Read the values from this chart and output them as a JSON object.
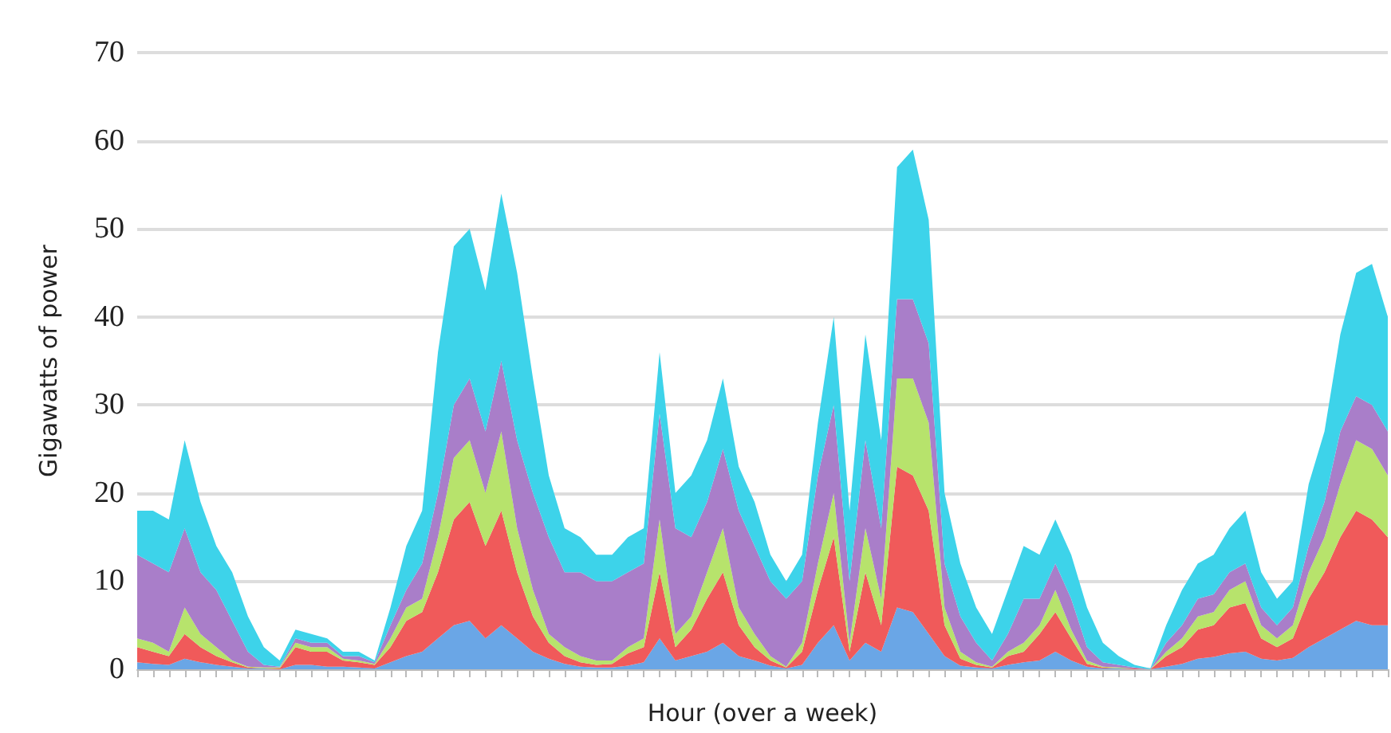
{
  "chart_data": {
    "type": "area",
    "stacked": true,
    "xlabel": "Hour (over a week)",
    "ylabel": "Gigawatts of power",
    "categories": [
      null,
      null,
      null,
      null,
      null,
      null,
      null,
      null,
      null,
      null,
      null,
      null,
      null,
      null,
      null,
      null,
      null,
      null,
      null,
      null,
      null,
      null,
      null,
      null,
      null,
      null,
      null,
      null,
      null,
      null,
      null,
      null,
      null,
      null,
      null,
      null,
      null,
      null,
      null,
      null,
      null,
      null,
      null,
      null,
      null,
      null,
      null,
      null,
      null,
      null,
      null,
      null,
      null,
      null,
      null,
      null,
      null,
      null,
      null,
      null,
      null,
      null,
      null,
      null,
      null,
      null,
      null,
      null,
      null,
      null,
      null,
      null,
      null,
      null,
      null,
      null,
      null,
      null,
      null,
      null
    ],
    "series": [
      {
        "color": "#6aa6e6",
        "values": [
          0.8,
          0.6,
          0.5,
          1.2,
          0.8,
          0.5,
          0.3,
          0.1,
          0.1,
          0,
          0.5,
          0.5,
          0.3,
          0.3,
          0.2,
          0.1,
          0.8,
          1.5,
          2,
          3.5,
          5,
          5.5,
          3.5,
          5,
          3.5,
          2,
          1.2,
          0.6,
          0.3,
          0.2,
          0.2,
          0.4,
          0.8,
          3.5,
          1,
          1.5,
          2,
          3,
          1.5,
          1,
          0.4,
          0.1,
          0.5,
          3,
          5,
          1,
          3,
          2,
          7,
          6.5,
          4,
          1.5,
          0.4,
          0.2,
          0.1,
          0.5,
          0.8,
          1,
          2,
          1,
          0.3,
          0.1,
          0.1,
          0,
          0,
          0.3,
          0.6,
          1.2,
          1.4,
          1.8,
          2,
          1.2,
          1,
          1.3,
          2.5,
          3.5,
          4.5,
          5.5,
          5,
          5
        ]
      },
      {
        "color": "#f05a5a",
        "values": [
          1.7,
          1.4,
          1,
          2.8,
          1.7,
          1,
          0.5,
          0.1,
          0,
          0.1,
          2,
          1.5,
          1.7,
          0.7,
          0.6,
          0.4,
          1.7,
          4,
          4.5,
          7.5,
          12,
          13.5,
          10.5,
          13,
          7.5,
          4,
          1.8,
          0.9,
          0.5,
          0.3,
          0.4,
          1.4,
          1.7,
          7.5,
          1.5,
          3,
          6,
          8,
          3.5,
          1.5,
          0.6,
          0.1,
          1.5,
          6,
          10,
          1,
          8,
          3,
          16,
          15.5,
          14,
          3.5,
          0.8,
          0.3,
          0.1,
          1,
          1.2,
          3,
          4.5,
          2.5,
          0.3,
          0.1,
          0,
          0.1,
          0,
          1.2,
          1.9,
          3.3,
          3.6,
          5.2,
          5.5,
          2.3,
          1.5,
          2.2,
          5.5,
          7.5,
          10.5,
          12.5,
          12,
          10
        ]
      },
      {
        "color": "#b7e36c",
        "values": [
          1,
          1,
          0.5,
          3,
          1.5,
          1,
          0.2,
          0.1,
          0.1,
          0.1,
          0.5,
          0.5,
          0.5,
          0.2,
          0.2,
          0.1,
          1,
          1.5,
          1.5,
          4,
          7,
          7,
          6,
          9,
          5,
          3,
          1,
          1,
          0.7,
          0.5,
          0.4,
          0.7,
          1,
          6,
          1.5,
          1.5,
          3,
          5,
          2,
          1.5,
          0.5,
          0.1,
          1,
          3,
          5,
          1,
          5,
          3,
          10,
          11,
          10,
          2,
          0.8,
          0.3,
          0.1,
          0.5,
          1,
          1,
          2.5,
          1,
          0.4,
          0.1,
          0.1,
          0,
          0,
          0.5,
          1,
          1.5,
          1.5,
          2,
          2.5,
          1.5,
          1,
          1.5,
          3,
          4,
          6,
          8,
          8,
          7
        ]
      },
      {
        "color": "#a97ec9",
        "values": [
          9.5,
          9,
          9,
          9,
          7,
          6.5,
          4.5,
          1.7,
          0.3,
          0.1,
          0.5,
          0.5,
          0.5,
          0.3,
          0.5,
          0.2,
          1.5,
          2,
          4,
          5,
          6,
          7,
          7,
          8,
          10,
          11,
          11,
          8.5,
          9.5,
          9,
          9,
          8.5,
          8.5,
          12,
          12,
          9,
          8,
          9,
          11,
          10,
          8.5,
          7.7,
          7,
          10,
          10,
          7,
          10,
          8,
          9,
          9,
          9,
          5,
          4,
          2.2,
          0.7,
          2,
          5,
          3,
          3,
          3.5,
          1.5,
          0.5,
          0.3,
          0.1,
          0,
          1,
          1.5,
          2,
          2,
          2,
          2,
          2,
          1.5,
          2,
          3,
          4,
          6,
          5,
          5,
          5
        ]
      },
      {
        "color": "#3dd3ea",
        "values": [
          5,
          6,
          6,
          10,
          8,
          5,
          5.5,
          4,
          2,
          0.7,
          1,
          1,
          0.5,
          0.5,
          0.5,
          0.2,
          2,
          5,
          6,
          16,
          18,
          17,
          16,
          19,
          19,
          13,
          7,
          5,
          4,
          3,
          3,
          4,
          4,
          7,
          4,
          7,
          7,
          8,
          5,
          5,
          3,
          2,
          3,
          6,
          10,
          8,
          12,
          10,
          15,
          17,
          14,
          8,
          6,
          4,
          3,
          5,
          6,
          5,
          5,
          5,
          4.5,
          2.2,
          1,
          0.3,
          0.1,
          2,
          4,
          4,
          4.5,
          5,
          6,
          4,
          3,
          3,
          7,
          8,
          11,
          14,
          16,
          13
        ]
      }
    ],
    "ylim": [
      0,
      70
    ],
    "yticks": [
      0,
      10,
      20,
      30,
      40,
      50,
      60,
      70
    ],
    "grid": "y",
    "tick_labels": "y"
  }
}
